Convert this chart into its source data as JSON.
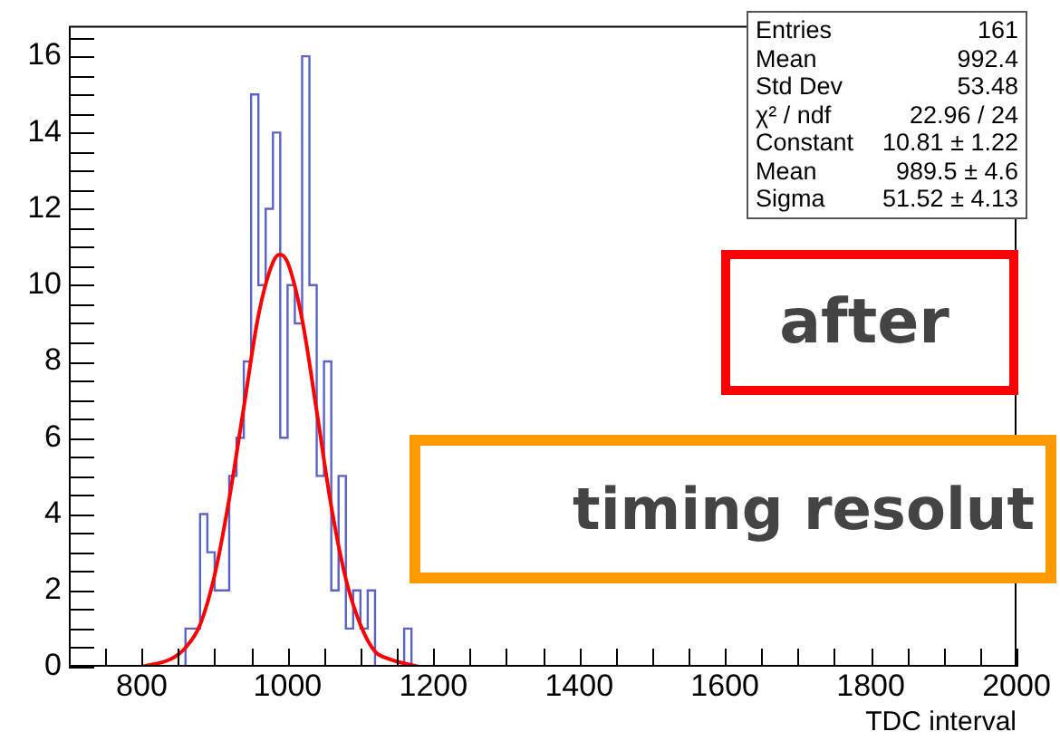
{
  "chart_data": {
    "type": "histogram",
    "xlabel": "TDC interval",
    "bins": [
      850,
      860,
      870,
      880,
      890,
      900,
      910,
      920,
      930,
      940,
      950,
      960,
      970,
      980,
      990,
      1000,
      1010,
      1020,
      1030,
      1040,
      1050,
      1060,
      1070,
      1080,
      1090,
      1100,
      1110,
      1120,
      1130,
      1140,
      1150,
      1160,
      1170,
      1180
    ],
    "values": [
      0,
      1,
      1,
      4,
      3,
      2,
      2,
      5,
      6,
      8,
      15,
      10,
      12,
      14,
      6,
      10,
      9,
      16,
      10,
      5,
      8,
      2,
      5,
      1,
      2,
      1,
      2,
      0,
      0,
      0,
      0,
      1,
      0
    ],
    "color": "#5c63c7",
    "series": [
      {
        "type": "line",
        "color": "#ff0000",
        "x": [
          800,
          840,
          860,
          880,
          900,
          920,
          940,
          960,
          980,
          989.5,
          1000,
          1020,
          1040,
          1060,
          1080,
          1100,
          1120,
          1140,
          1180
        ],
        "values": [
          0.0,
          0.2,
          0.5,
          1.1,
          2.4,
          4.4,
          6.8,
          9.2,
          10.6,
          10.8,
          10.6,
          9.1,
          6.7,
          4.2,
          2.3,
          1.1,
          0.4,
          0.2,
          0.0
        ]
      }
    ],
    "xlim": [
      700,
      2000
    ],
    "ylim": [
      0,
      16.8
    ],
    "xticks": [
      {
        "value": 700,
        "label": null
      },
      {
        "value": 750,
        "label": null
      },
      800,
      {
        "value": 850,
        "label": null
      },
      {
        "value": 900,
        "label": null
      },
      {
        "value": 950,
        "label": null
      },
      1000,
      {
        "value": 1050,
        "label": null
      },
      {
        "value": 1100,
        "label": null
      },
      {
        "value": 1150,
        "label": null
      },
      1200,
      {
        "value": 1250,
        "label": null
      },
      {
        "value": 1300,
        "label": null
      },
      {
        "value": 1350,
        "label": null
      },
      1400,
      {
        "value": 1450,
        "label": null
      },
      {
        "value": 1500,
        "label": null
      },
      {
        "value": 1550,
        "label": null
      },
      1600,
      {
        "value": 1650,
        "label": null
      },
      {
        "value": 1700,
        "label": null
      },
      {
        "value": 1750,
        "label": null
      },
      1800,
      {
        "value": 1850,
        "label": null
      },
      {
        "value": 1900,
        "label": null
      },
      {
        "value": 1950,
        "label": null
      },
      2000
    ],
    "yticks": [
      0,
      {
        "value": 0.5,
        "label": null
      },
      {
        "value": 1,
        "label": null
      },
      {
        "value": 1.5,
        "label": null
      },
      2,
      {
        "value": 2.5,
        "label": null
      },
      {
        "value": 3,
        "label": null
      },
      {
        "value": 3.5,
        "label": null
      },
      4,
      {
        "value": 4.5,
        "label": null
      },
      {
        "value": 5,
        "label": null
      },
      {
        "value": 5.5,
        "label": null
      },
      6,
      {
        "value": 6.5,
        "label": null
      },
      {
        "value": 7,
        "label": null
      },
      {
        "value": 7.5,
        "label": null
      },
      8,
      {
        "value": 8.5,
        "label": null
      },
      {
        "value": 9,
        "label": null
      },
      {
        "value": 9.5,
        "label": null
      },
      10,
      {
        "value": 10.5,
        "label": null
      },
      {
        "value": 11,
        "label": null
      },
      {
        "value": 11.5,
        "label": null
      },
      12,
      {
        "value": 12.5,
        "label": null
      },
      {
        "value": 13,
        "label": null
      },
      {
        "value": 13.5,
        "label": null
      },
      14,
      {
        "value": 14.5,
        "label": null
      },
      {
        "value": 15,
        "label": null
      },
      {
        "value": 15.5,
        "label": null
      },
      16,
      {
        "value": 16.5,
        "label": null
      }
    ],
    "grid": false,
    "legend": false,
    "annotations": [
      "Entries 161",
      "Mean 992.4",
      "Std Dev 53.48",
      "χ² / ndf 22.96 / 24",
      "Constant 10.81 ± 1.22",
      "Mean 989.5 ± 4.6",
      "Sigma 51.52 ± 4.13",
      "after",
      "timing resolut"
    ]
  }
}
